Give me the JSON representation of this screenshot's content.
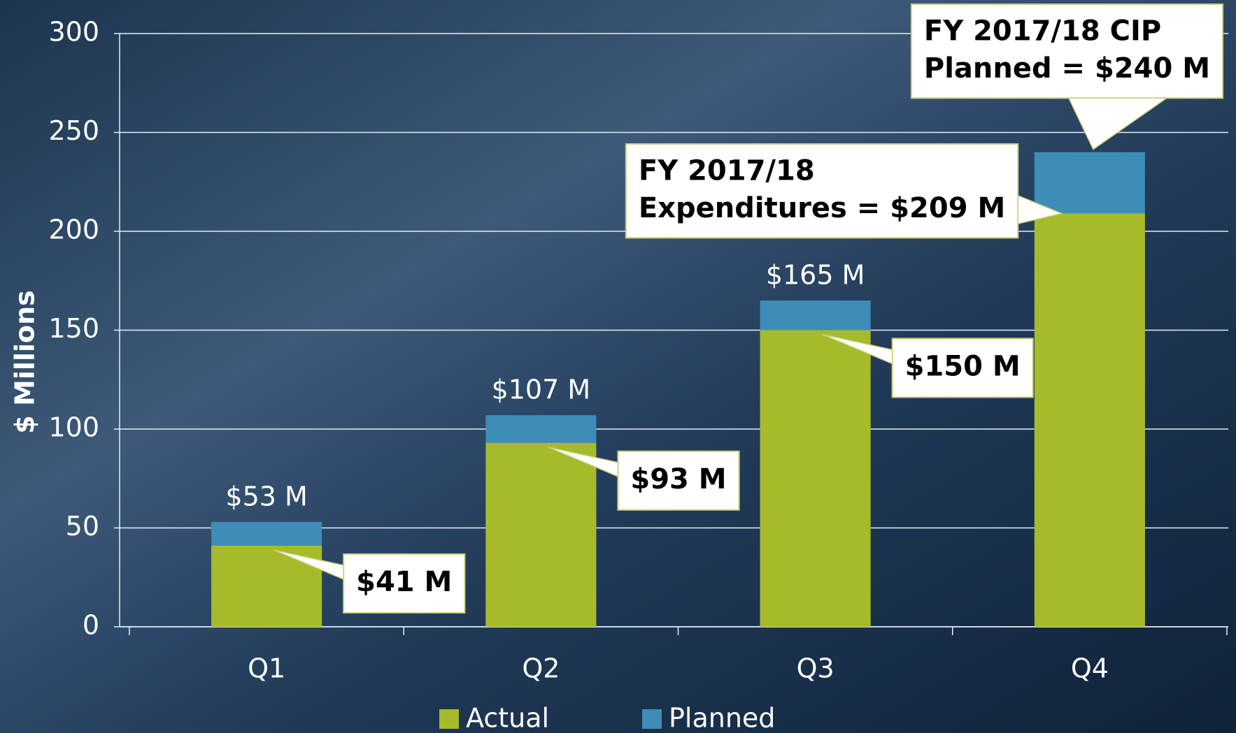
{
  "chart_data": {
    "type": "overlaid-bar",
    "y_axis_label": "$ Millions",
    "categories": [
      "Q1",
      "Q2",
      "Q3",
      "Q4"
    ],
    "series": [
      {
        "name": "Planned",
        "color": "#3e8cb8",
        "values": [
          53,
          107,
          165,
          240
        ],
        "value_labels": [
          "$53 M",
          "$107 M",
          "$165 M",
          null
        ]
      },
      {
        "name": "Actual",
        "color": "#a7ba2a",
        "values": [
          41,
          93,
          150,
          209
        ],
        "value_labels": [
          "$41 M",
          "$93 M",
          "$150 M",
          null
        ]
      }
    ],
    "legend_order": [
      "Actual",
      "Planned"
    ],
    "annotations": [
      {
        "lines": [
          "FY 2017/18 CIP",
          "Planned = $240 M"
        ]
      },
      {
        "lines": [
          "FY 2017/18",
          "Expenditures = $209 M"
        ]
      }
    ],
    "ylim": [
      0,
      300
    ],
    "yticks": [
      0,
      50,
      100,
      150,
      200,
      250,
      300
    ],
    "grid": true,
    "legend": "bottom"
  }
}
